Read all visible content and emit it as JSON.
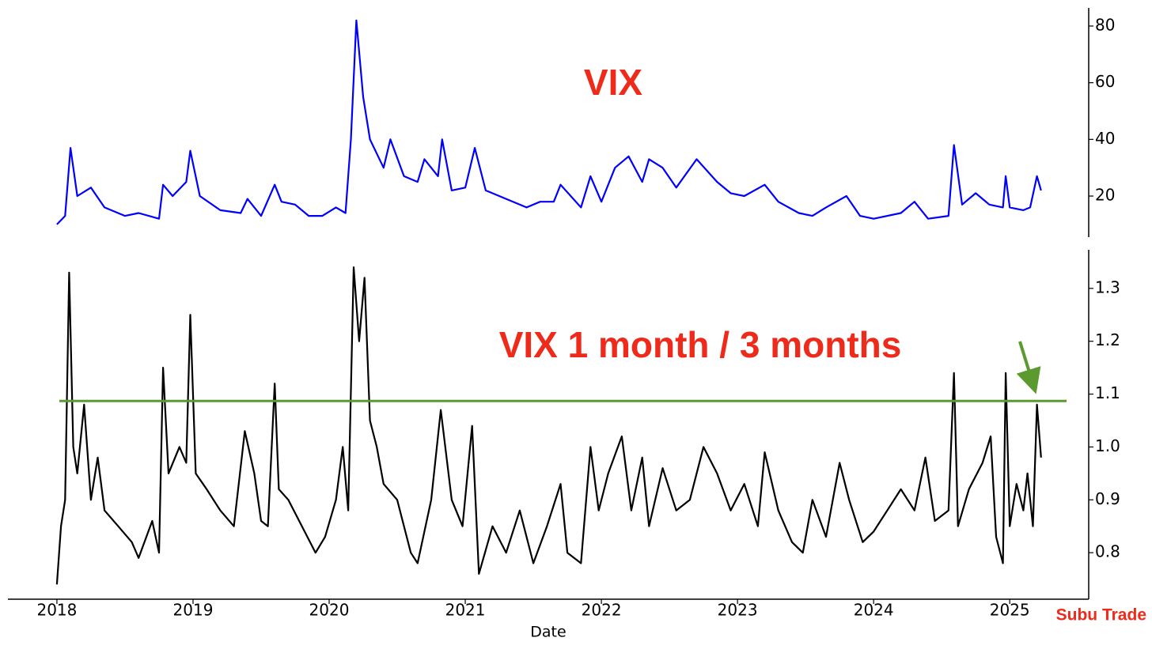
{
  "chart_data": [
    {
      "type": "line",
      "title": "VIX",
      "color": "#0000ff",
      "x": [
        2018.0,
        2018.06,
        2018.1,
        2018.15,
        2018.25,
        2018.35,
        2018.5,
        2018.6,
        2018.75,
        2018.78,
        2018.85,
        2018.95,
        2018.98,
        2019.05,
        2019.2,
        2019.35,
        2019.4,
        2019.5,
        2019.6,
        2019.65,
        2019.75,
        2019.85,
        2019.95,
        2020.05,
        2020.12,
        2020.16,
        2020.2,
        2020.25,
        2020.3,
        2020.4,
        2020.45,
        2020.55,
        2020.65,
        2020.7,
        2020.8,
        2020.83,
        2020.9,
        2021.0,
        2021.07,
        2021.15,
        2021.3,
        2021.45,
        2021.55,
        2021.65,
        2021.7,
        2021.85,
        2021.92,
        2022.0,
        2022.1,
        2022.2,
        2022.3,
        2022.35,
        2022.45,
        2022.55,
        2022.7,
        2022.85,
        2022.95,
        2023.05,
        2023.2,
        2023.3,
        2023.45,
        2023.55,
        2023.65,
        2023.8,
        2023.9,
        2024.0,
        2024.2,
        2024.3,
        2024.4,
        2024.55,
        2024.59,
        2024.65,
        2024.75,
        2024.85,
        2024.95,
        2024.97,
        2025.0,
        2025.1,
        2025.15,
        2025.2,
        2025.23
      ],
      "values": [
        10,
        13,
        37,
        20,
        23,
        16,
        13,
        14,
        12,
        24,
        20,
        25,
        36,
        20,
        15,
        14,
        19,
        13,
        24,
        18,
        17,
        13,
        13,
        16,
        14,
        40,
        82,
        55,
        40,
        30,
        40,
        27,
        25,
        33,
        27,
        40,
        22,
        23,
        37,
        22,
        19,
        16,
        18,
        18,
        24,
        16,
        27,
        18,
        30,
        34,
        25,
        33,
        30,
        23,
        33,
        25,
        21,
        20,
        24,
        18,
        14,
        13,
        16,
        20,
        13,
        12,
        14,
        18,
        12,
        13,
        38,
        17,
        21,
        17,
        16,
        27,
        16,
        15,
        16,
        27,
        22
      ],
      "xlim": [
        2017.64,
        2025.58
      ],
      "ylim": [
        5.5,
        86.4
      ],
      "yticks": [
        20,
        40,
        60,
        80
      ]
    },
    {
      "type": "line",
      "title": "VIX 1 month / 3 months",
      "color": "#000000",
      "x_label": "Date",
      "x": [
        2018.0,
        2018.03,
        2018.06,
        2018.09,
        2018.12,
        2018.15,
        2018.2,
        2018.25,
        2018.3,
        2018.35,
        2018.45,
        2018.55,
        2018.6,
        2018.7,
        2018.75,
        2018.78,
        2018.82,
        2018.9,
        2018.95,
        2018.98,
        2019.02,
        2019.1,
        2019.2,
        2019.3,
        2019.38,
        2019.45,
        2019.5,
        2019.55,
        2019.6,
        2019.63,
        2019.7,
        2019.8,
        2019.9,
        2019.97,
        2020.05,
        2020.1,
        2020.14,
        2020.18,
        2020.22,
        2020.26,
        2020.3,
        2020.35,
        2020.4,
        2020.5,
        2020.6,
        2020.65,
        2020.75,
        2020.82,
        2020.9,
        2020.98,
        2021.05,
        2021.1,
        2021.2,
        2021.3,
        2021.4,
        2021.5,
        2021.6,
        2021.7,
        2021.75,
        2021.85,
        2021.92,
        2021.98,
        2022.05,
        2022.15,
        2022.22,
        2022.3,
        2022.35,
        2022.45,
        2022.55,
        2022.65,
        2022.75,
        2022.85,
        2022.95,
        2023.05,
        2023.15,
        2023.2,
        2023.3,
        2023.4,
        2023.48,
        2023.55,
        2023.65,
        2023.75,
        2023.82,
        2023.92,
        2024.0,
        2024.1,
        2024.2,
        2024.3,
        2024.38,
        2024.45,
        2024.55,
        2024.59,
        2024.62,
        2024.7,
        2024.8,
        2024.86,
        2024.9,
        2024.95,
        2024.97,
        2025.0,
        2025.05,
        2025.1,
        2025.13,
        2025.17,
        2025.2,
        2025.23
      ],
      "values": [
        0.74,
        0.85,
        0.9,
        1.33,
        1.0,
        0.95,
        1.08,
        0.9,
        0.98,
        0.88,
        0.85,
        0.82,
        0.79,
        0.86,
        0.8,
        1.15,
        0.95,
        1.0,
        0.97,
        1.25,
        0.95,
        0.92,
        0.88,
        0.85,
        1.03,
        0.95,
        0.86,
        0.85,
        1.12,
        0.92,
        0.9,
        0.85,
        0.8,
        0.83,
        0.9,
        1.0,
        0.88,
        1.34,
        1.2,
        1.32,
        1.05,
        1.0,
        0.93,
        0.9,
        0.8,
        0.78,
        0.9,
        1.07,
        0.9,
        0.85,
        1.04,
        0.76,
        0.85,
        0.8,
        0.88,
        0.78,
        0.85,
        0.93,
        0.8,
        0.78,
        1.0,
        0.88,
        0.95,
        1.02,
        0.88,
        0.98,
        0.85,
        0.96,
        0.88,
        0.9,
        1.0,
        0.95,
        0.88,
        0.93,
        0.85,
        0.99,
        0.88,
        0.82,
        0.8,
        0.9,
        0.83,
        0.97,
        0.9,
        0.82,
        0.84,
        0.88,
        0.92,
        0.88,
        0.98,
        0.86,
        0.88,
        1.14,
        0.85,
        0.92,
        0.97,
        1.02,
        0.83,
        0.78,
        1.14,
        0.85,
        0.93,
        0.88,
        0.95,
        0.85,
        1.08,
        0.98
      ],
      "hline": 1.087,
      "hline_color": "#5b9a2f",
      "xlim": [
        2017.64,
        2025.58
      ],
      "xticks": [
        2018,
        2019,
        2020,
        2021,
        2022,
        2023,
        2024,
        2025
      ],
      "ylim": [
        0.712,
        1.373
      ],
      "yticks": [
        0.8,
        0.9,
        {
          "value": 1,
          "label": "1.0"
        },
        1.1,
        1.2,
        1.3
      ]
    }
  ],
  "watermark": "Subu Trade"
}
